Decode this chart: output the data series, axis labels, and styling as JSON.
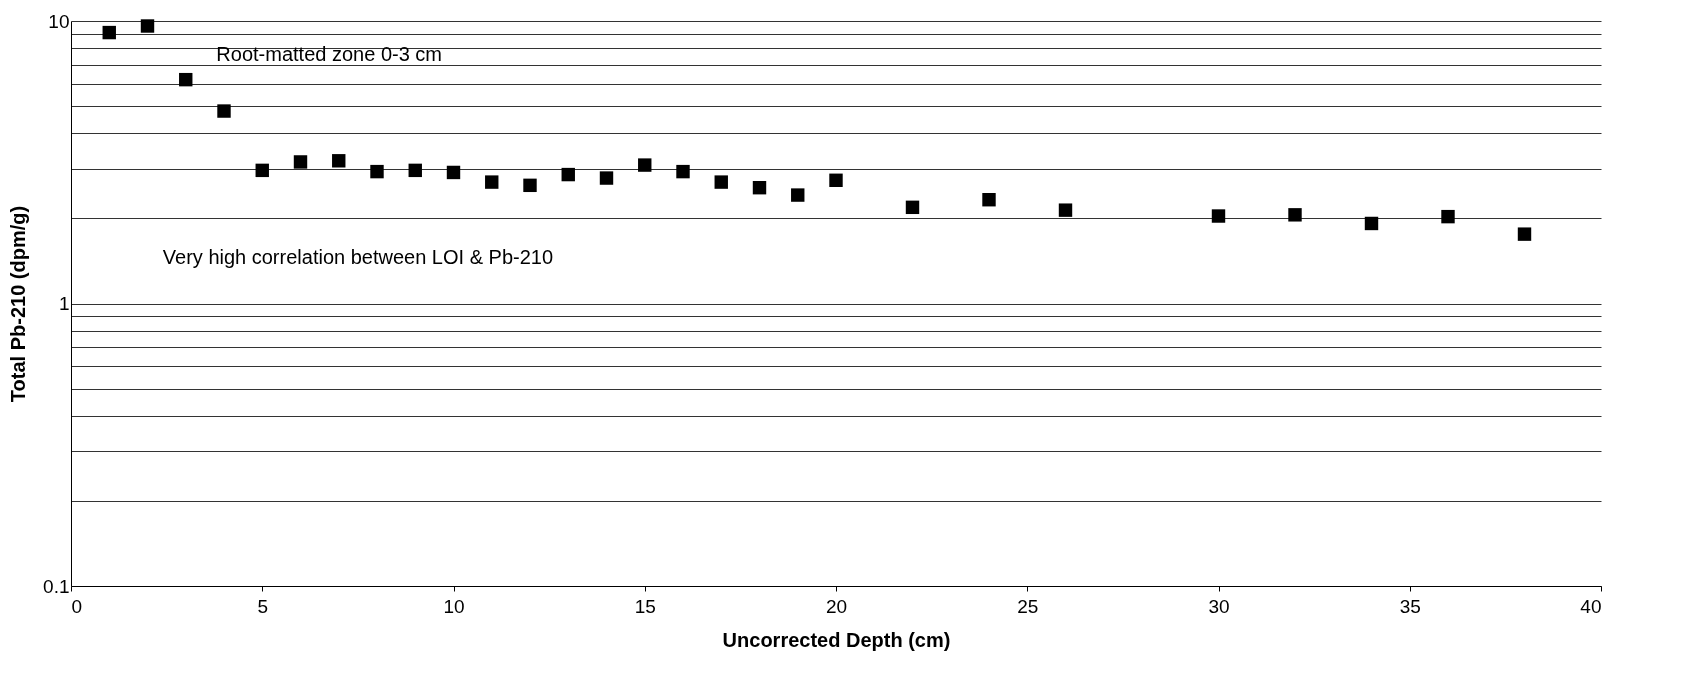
{
  "chart_data": {
    "type": "scatter",
    "xlabel": "Uncorrected Depth (cm)",
    "ylabel": "Total Pb-210 (dpm/g)",
    "x": [
      1,
      2,
      3,
      4,
      5,
      6,
      7,
      8,
      9,
      10,
      11,
      12,
      13,
      14,
      15,
      16,
      17,
      18,
      19,
      20,
      22,
      24,
      26,
      30,
      32,
      34,
      36,
      38
    ],
    "series": [
      {
        "color": "#000000",
        "values": [
          9.1,
          9.6,
          6.2,
          4.8,
          2.96,
          3.17,
          3.2,
          2.93,
          2.96,
          2.91,
          2.69,
          2.62,
          2.86,
          2.78,
          3.09,
          2.93,
          2.69,
          2.57,
          2.42,
          2.73,
          2.19,
          2.33,
          2.14,
          2.04,
          2.06,
          1.92,
          2.03,
          1.76
        ]
      }
    ],
    "log": "y",
    "xlim": [
      0,
      40
    ],
    "xticks": [
      0,
      5,
      10,
      15,
      20,
      25,
      30,
      35,
      40
    ],
    "ylim": [
      0.1,
      10
    ],
    "yticks": [
      0.1,
      {
        "value": 0.2,
        "label": null
      },
      {
        "value": 0.3,
        "label": null
      },
      {
        "value": 0.4,
        "label": null
      },
      {
        "value": 0.5,
        "label": null
      },
      {
        "value": 0.6,
        "label": null
      },
      {
        "value": 0.7,
        "label": null
      },
      {
        "value": 0.8,
        "label": null
      },
      {
        "value": 0.9,
        "label": null
      },
      1,
      {
        "value": 2,
        "label": null
      },
      {
        "value": 3,
        "label": null
      },
      {
        "value": 4,
        "label": null
      },
      {
        "value": 5,
        "label": null
      },
      {
        "value": 6,
        "label": null
      },
      {
        "value": 7,
        "label": null
      },
      {
        "value": 8,
        "label": null
      },
      {
        "value": 9,
        "label": null
      },
      10
    ],
    "grid": "y",
    "marker": "square",
    "annotations": [
      "Root-matted zone 0-3 cm",
      "Very high correlation between LOI & Pb-210"
    ]
  }
}
